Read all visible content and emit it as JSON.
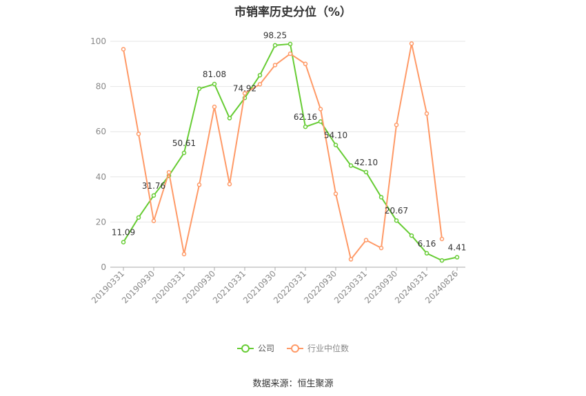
{
  "chart_data": {
    "type": "line",
    "title": "市销率历史分位（%）",
    "xlabel": "",
    "ylabel": "",
    "ylim": [
      0,
      100
    ],
    "yticks": [
      0,
      20,
      40,
      60,
      80,
      100
    ],
    "grid": true,
    "legend_position": "bottom",
    "x": [
      "20190331",
      "20190630",
      "20190930",
      "20191231",
      "20200331",
      "20200630",
      "20200930",
      "20201231",
      "20210331",
      "20210630",
      "20210930",
      "20211231",
      "20220331",
      "20220630",
      "20220930",
      "20221231",
      "20230331",
      "20230630",
      "20230930",
      "20231231",
      "20240331",
      "20240630",
      "20240826"
    ],
    "x_tick_labels": [
      "20190331",
      "20190930",
      "20200331",
      "20200930",
      "20210331",
      "20210930",
      "20220331",
      "20220930",
      "20230331",
      "20230930",
      "20240331",
      "20240826"
    ],
    "series": [
      {
        "name": "公司",
        "color": "#66cc33",
        "values": [
          11.09,
          22.0,
          31.76,
          40.5,
          50.61,
          79.0,
          81.08,
          66.0,
          74.92,
          85.0,
          98.25,
          98.8,
          62.16,
          64.5,
          54.1,
          45.0,
          42.1,
          31.0,
          20.67,
          14.0,
          6.16,
          3.0,
          4.41
        ],
        "labels": {
          "0": "11.09",
          "2": "31.76",
          "4": "50.61",
          "6": "81.08",
          "8": "74.92",
          "10": "98.25",
          "12": "62.16",
          "14": "54.10",
          "16": "42.10",
          "18": "20.67",
          "20": "6.16",
          "22": "4.41"
        }
      },
      {
        "name": "行业中位数",
        "color": "#ff9966",
        "values": [
          96.5,
          59.0,
          20.5,
          42.0,
          5.8,
          36.5,
          71.0,
          36.8,
          77.0,
          81.0,
          89.5,
          94.5,
          90.0,
          70.0,
          32.5,
          3.5,
          12.0,
          8.5,
          63.0,
          99.0,
          68.0,
          12.5,
          null
        ]
      }
    ]
  },
  "legend": {
    "company": "公司",
    "industry": "行业中位数"
  },
  "source": "数据来源：恒生聚源"
}
